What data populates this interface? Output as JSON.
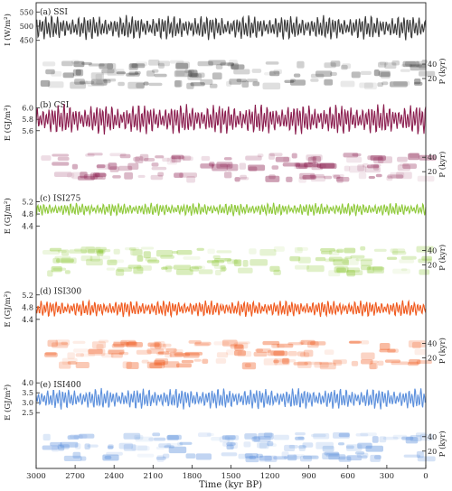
{
  "chart_data": {
    "type": "line",
    "xlabel": "Time (kyr BP)",
    "x_ticks": [
      3000,
      2700,
      2400,
      2100,
      1800,
      1500,
      1200,
      900,
      600,
      300,
      0
    ],
    "xlim": [
      3000,
      0
    ],
    "x_reversed": true,
    "note": "",
    "panels": [
      {
        "label": "(a) SSI",
        "ylabel": "I (W/m²)",
        "y_ticks": [
          "550",
          "500",
          "450"
        ],
        "y_values": [
          550,
          500,
          450
        ],
        "ylim": [
          430,
          570
        ],
        "mean": 495,
        "amplitude": 45,
        "color": "#3a3a3a",
        "spectrum_label": "P (kyr)",
        "spectrum_ticks": [
          "40",
          "20"
        ]
      },
      {
        "label": "(b) CSI",
        "ylabel": "E (GJ/m²)",
        "y_ticks": [
          "6.0",
          "5.8",
          "5.6"
        ],
        "y_values": [
          6.0,
          5.8,
          5.6
        ],
        "ylim": [
          5.45,
          6.15
        ],
        "mean": 5.8,
        "amplitude": 0.28,
        "color": "#8b1e4f",
        "spectrum_label": "P (kyr)",
        "spectrum_ticks": [
          "40",
          "20"
        ]
      },
      {
        "label": "(c) ISI275",
        "ylabel": "E (GJ/m²)",
        "y_ticks": [
          "5.2",
          "4.8",
          "4.4"
        ],
        "y_values": [
          5.2,
          4.8,
          4.4
        ],
        "ylim": [
          4.2,
          5.5
        ],
        "mean": 4.95,
        "amplitude": 0.22,
        "color": "#8fc93a",
        "spectrum_label": "P (kyr)",
        "spectrum_ticks": [
          "40",
          "20"
        ]
      },
      {
        "label": "(d) ISI300",
        "ylabel": "E (GJ/m²)",
        "y_ticks": [
          "5.2",
          "4.8",
          "4.4"
        ],
        "y_values": [
          5.2,
          4.8,
          4.4
        ],
        "ylim": [
          4.2,
          5.5
        ],
        "mean": 4.75,
        "amplitude": 0.28,
        "color": "#f05a1e",
        "spectrum_label": "P (kyr)",
        "spectrum_ticks": [
          "40",
          "20"
        ]
      },
      {
        "label": "(e) ISI400",
        "ylabel": "E (GJ/m²)",
        "y_ticks": [
          "4.0",
          "3.5",
          "3.0",
          "2.5"
        ],
        "y_values": [
          4.0,
          3.5,
          3.0,
          2.5
        ],
        "ylim": [
          2.2,
          4.2
        ],
        "mean": 3.2,
        "amplitude": 0.55,
        "color": "#5b8fdc",
        "spectrum_label": "P (kyr)",
        "spectrum_ticks": [
          "40",
          "20"
        ]
      }
    ]
  }
}
